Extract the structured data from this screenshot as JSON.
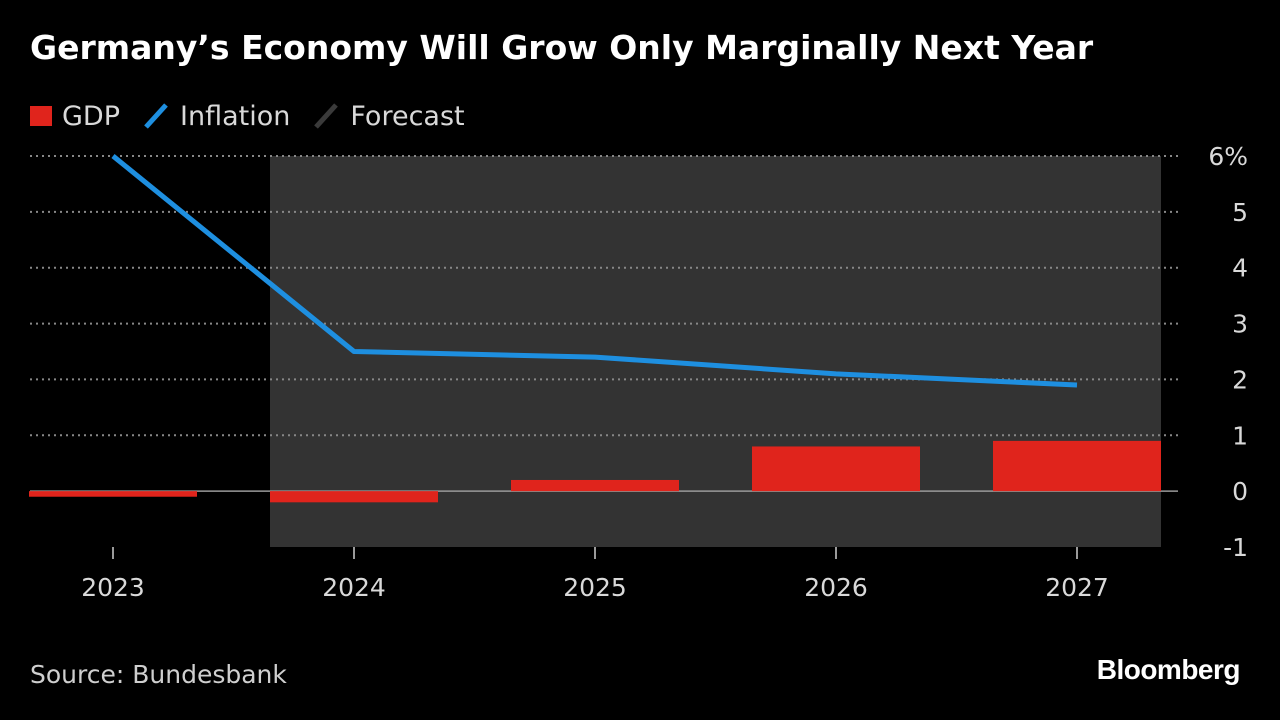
{
  "title": "Germany’s Economy Will Grow Only Marginally Next Year",
  "legend": {
    "gdp": "GDP",
    "inflation": "Inflation",
    "forecast": "Forecast"
  },
  "source": "Source: Bundesbank",
  "brand": "Bloomberg",
  "colors": {
    "gdp": "#e0241c",
    "inflation": "#1e8fe0",
    "forecast_bg": "#333333",
    "grid": "#888888"
  },
  "chart_data": {
    "type": "bar",
    "title": "Germany’s Economy Will Grow Only Marginally Next Year",
    "categories": [
      "2023",
      "2024",
      "2025",
      "2026",
      "2027"
    ],
    "series": [
      {
        "name": "GDP",
        "type": "bar",
        "values": [
          -0.1,
          -0.2,
          0.2,
          0.8,
          0.9
        ]
      },
      {
        "name": "Inflation",
        "type": "line",
        "values": [
          6.0,
          2.5,
          2.4,
          2.1,
          1.9
        ]
      }
    ],
    "forecast_range": [
      "2024",
      "2027"
    ],
    "ylim": [
      -1,
      6
    ],
    "yticks": [
      -1,
      0,
      1,
      2,
      3,
      4,
      5,
      6
    ],
    "ytick_labels": [
      "-1",
      "0",
      "1",
      "2",
      "3",
      "4",
      "5",
      "6%"
    ],
    "y_axis_side": "right",
    "grid": true,
    "legend_position": "top-left",
    "xlabel": "",
    "ylabel": ""
  }
}
